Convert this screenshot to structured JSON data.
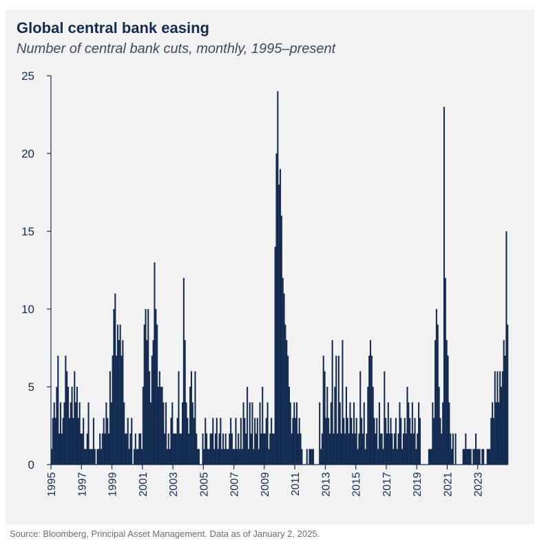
{
  "chart_data": {
    "type": "bar",
    "title": "Global central bank easing",
    "subtitle": "Number of central bank cuts, monthly, 1995–present",
    "source": "Source: Bloomberg, Principal Asset Management. Data as of January 2, 2025.",
    "xlabel": "",
    "ylabel": "",
    "ylim": [
      0,
      25
    ],
    "yticks": [
      0,
      5,
      10,
      15,
      20,
      25
    ],
    "xticks": [
      "1995",
      "1997",
      "1999",
      "2001",
      "2003",
      "2005",
      "2007",
      "2009",
      "2011",
      "2013",
      "2015",
      "2017",
      "2019",
      "2021",
      "2023"
    ],
    "start": "1995-01",
    "bar_color": "#152c52",
    "grid": false,
    "values": [
      1,
      3,
      4,
      3,
      5,
      7,
      2,
      4,
      2,
      3,
      4,
      7,
      6,
      5,
      3,
      4,
      5,
      3,
      6,
      4,
      5,
      3,
      4,
      2,
      2,
      3,
      1,
      1,
      2,
      4,
      1,
      1,
      1,
      3,
      1,
      0,
      1,
      1,
      2,
      1,
      2,
      3,
      2,
      4,
      3,
      2,
      6,
      4,
      7,
      10,
      11,
      7,
      9,
      8,
      9,
      7,
      8,
      4,
      2,
      2,
      3,
      1,
      2,
      3,
      0,
      1,
      2,
      1,
      1,
      2,
      2,
      1,
      5,
      9,
      10,
      8,
      10,
      6,
      4,
      7,
      8,
      13,
      10,
      9,
      5,
      6,
      5,
      5,
      4,
      2,
      4,
      1,
      2,
      1,
      3,
      4,
      2,
      2,
      2,
      3,
      6,
      2,
      2,
      4,
      12,
      8,
      4,
      3,
      2,
      5,
      6,
      4,
      3,
      6,
      2,
      1,
      1,
      0,
      0,
      2,
      1,
      3,
      2,
      1,
      1,
      2,
      2,
      3,
      1,
      2,
      3,
      1,
      2,
      3,
      1,
      2,
      1,
      2,
      1,
      1,
      2,
      3,
      2,
      1,
      1,
      3,
      1,
      2,
      1,
      3,
      1,
      4,
      3,
      2,
      5,
      1,
      4,
      2,
      4,
      1,
      3,
      2,
      3,
      1,
      4,
      2,
      5,
      2,
      2,
      3,
      4,
      1,
      2,
      3,
      2,
      2,
      14,
      20,
      24,
      18,
      19,
      16,
      12,
      11,
      9,
      8,
      7,
      5,
      4,
      2,
      3,
      4,
      3,
      4,
      2,
      3,
      2,
      1,
      0,
      0,
      0,
      1,
      0,
      1,
      1,
      1,
      1,
      0,
      0,
      0,
      0,
      4,
      1,
      2,
      7,
      6,
      3,
      5,
      3,
      2,
      4,
      8,
      2,
      5,
      7,
      2,
      7,
      4,
      2,
      8,
      3,
      2,
      5,
      3,
      2,
      4,
      3,
      2,
      4,
      2,
      3,
      1,
      2,
      6,
      3,
      2,
      4,
      1,
      2,
      5,
      7,
      8,
      7,
      5,
      3,
      2,
      3,
      1,
      4,
      2,
      2,
      1,
      6,
      3,
      2,
      4,
      2,
      3,
      2,
      1,
      2,
      3,
      1,
      2,
      4,
      3,
      1,
      2,
      3,
      2,
      5,
      4,
      3,
      2,
      4,
      2,
      3,
      1,
      2,
      4,
      3,
      0,
      0,
      0,
      0,
      0,
      0,
      1,
      1,
      1,
      4,
      3,
      8,
      10,
      9,
      5,
      3,
      2,
      4,
      23,
      12,
      8,
      7,
      4,
      2,
      1,
      2,
      0,
      2,
      0,
      0,
      0,
      0,
      0,
      1,
      1,
      2,
      1,
      1,
      1,
      1,
      0,
      1,
      1,
      2,
      1,
      1,
      1,
      0,
      1,
      1,
      0,
      0,
      1,
      1,
      1,
      3,
      4,
      3,
      6,
      4,
      6,
      4,
      6,
      5,
      6,
      8,
      7,
      15,
      9
    ]
  }
}
